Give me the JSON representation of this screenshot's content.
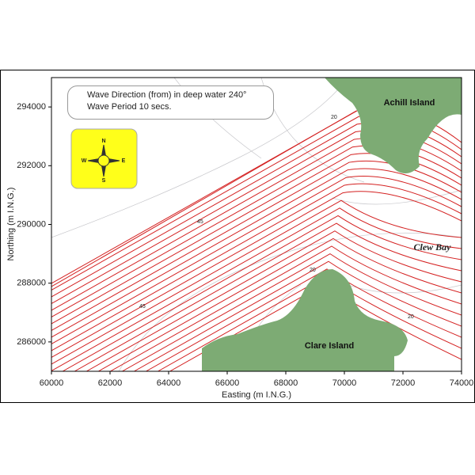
{
  "chart_data": {
    "type": "map",
    "title_lines": [
      "Wave Direction (from) in deep water 240°",
      "Wave Period 10 secs."
    ],
    "x_label": "Easting (m I.N.G.)",
    "y_label": "Northing (m I.N.G.)",
    "xlim": [
      60000,
      74000
    ],
    "ylim": [
      285000,
      295000
    ],
    "xticks": [
      60000,
      62000,
      64000,
      66000,
      68000,
      70000,
      72000,
      74000
    ],
    "yticks": [
      286000,
      288000,
      290000,
      292000,
      294000
    ],
    "places": {
      "achill": "Achill Island",
      "clare": "Clare Island",
      "clew_bay": "Clew Bay"
    },
    "compass": [
      "N",
      "E",
      "S",
      "W"
    ],
    "contour_labels": [
      20,
      45,
      45,
      20,
      20
    ]
  }
}
